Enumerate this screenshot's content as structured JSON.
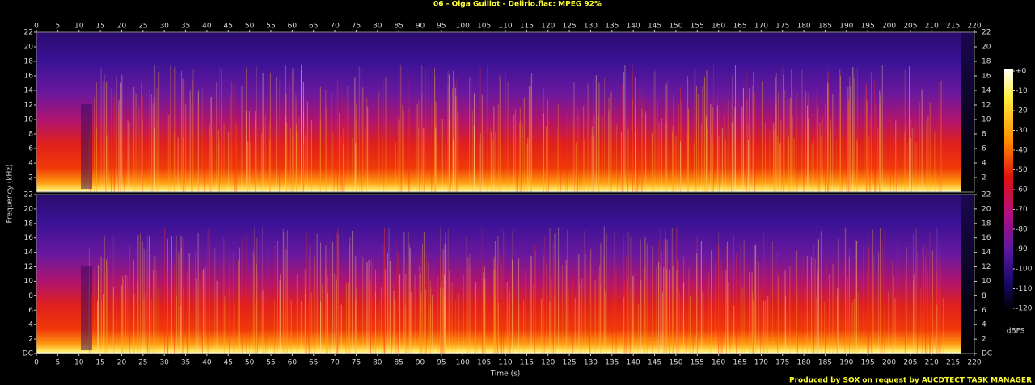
{
  "chart_data": {
    "type": "spectrogram",
    "title": "06 - Olga Guillot - Delirio.flac: MPEG 92%",
    "x_label": "Time (s)",
    "y_label": "Frequency (kHz)",
    "xlim": [
      0,
      220
    ],
    "xticks": [
      0,
      5,
      10,
      15,
      20,
      25,
      30,
      35,
      40,
      45,
      50,
      55,
      60,
      65,
      70,
      75,
      80,
      85,
      90,
      95,
      100,
      105,
      110,
      115,
      120,
      125,
      130,
      135,
      140,
      145,
      150,
      155,
      160,
      165,
      170,
      175,
      180,
      185,
      190,
      195,
      200,
      205,
      210,
      215,
      220
    ],
    "ylim": [
      0,
      22
    ],
    "panels": [
      {
        "yticks": [
          2,
          4,
          6,
          8,
          10,
          12,
          14,
          16,
          18,
          20,
          22
        ]
      },
      {
        "yticks": [
          {
            "value": 0,
            "label": "DC"
          },
          2,
          4,
          6,
          8,
          10,
          12,
          14,
          16,
          18,
          20,
          22
        ]
      }
    ],
    "colorbar": {
      "label": "dBFS",
      "lim": [
        -120,
        0
      ],
      "ticks": [
        {
          "value": 0,
          "label": "+0"
        },
        -10,
        -20,
        -30,
        -40,
        -50,
        -60,
        -70,
        -80,
        -90,
        -100,
        -110,
        -120
      ]
    },
    "footer": "Produced by SOX on request by AUCDTECT TASK MANAGER"
  }
}
